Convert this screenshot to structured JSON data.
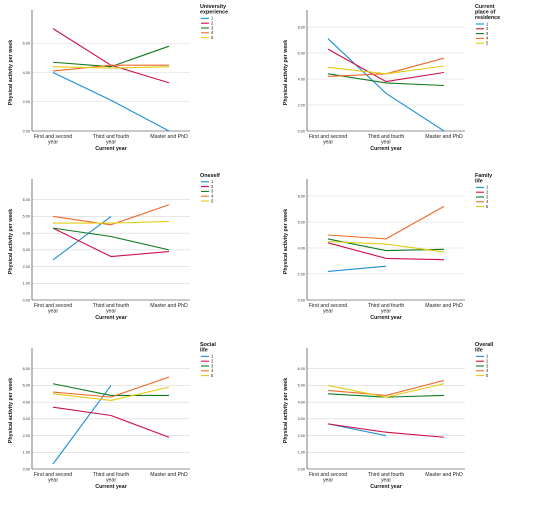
{
  "colors": {
    "1": "#1b8fd6",
    "2": "#d0104a",
    "3": "#127a1f",
    "4": "#ee6a2a",
    "5": "#e4cc12",
    "grid": "#d7d7d7",
    "axis": "#222222"
  },
  "chart_data": [
    {
      "type": "line",
      "ylabel": "Physical activity per week",
      "xlabel": "Current year",
      "legend_title": [
        "University",
        "experience"
      ],
      "ylim": [
        0,
        8
      ],
      "yticks": [
        "0.00",
        "2.00",
        "4.00",
        "6.00"
      ],
      "ytick_values": [
        0,
        2,
        4,
        6
      ],
      "categories": [
        [
          "First and second",
          "year"
        ],
        [
          "Third and fourth",
          "year"
        ],
        [
          "Master and PhD"
        ]
      ],
      "legend_placement": "top-right",
      "series": [
        {
          "name": "1",
          "values": [
            4.0,
            2.1,
            0.0
          ]
        },
        {
          "name": "2",
          "values": [
            7.0,
            4.5,
            3.3
          ]
        },
        {
          "name": "3",
          "values": [
            4.7,
            4.4,
            5.8
          ]
        },
        {
          "name": "4",
          "values": [
            4.1,
            4.5,
            4.5
          ]
        },
        {
          "name": "5",
          "values": [
            4.4,
            4.3,
            4.4
          ]
        }
      ]
    },
    {
      "type": "line",
      "ylabel": "Physical activity per week",
      "xlabel": "Current year",
      "legend_title": [
        "Current",
        "place of",
        "residence"
      ],
      "ylim": [
        0,
        9
      ],
      "yticks": [
        "0.00",
        "2.00",
        "4.00",
        "6.00",
        "8.00"
      ],
      "ytick_values": [
        0,
        2,
        4,
        6,
        8
      ],
      "categories": [
        [
          "First and second",
          "year"
        ],
        [
          "Third and fourth",
          "year"
        ],
        [
          "Master and PhD"
        ]
      ],
      "legend_placement": "top-right",
      "series": [
        {
          "name": "1",
          "values": [
            7.1,
            2.9,
            0.0
          ]
        },
        {
          "name": "2",
          "values": [
            6.3,
            3.8,
            4.5
          ]
        },
        {
          "name": "3",
          "values": [
            4.4,
            3.7,
            3.5
          ]
        },
        {
          "name": "4",
          "values": [
            4.2,
            4.4,
            5.6
          ]
        },
        {
          "name": "5",
          "values": [
            4.9,
            4.4,
            5.0
          ]
        }
      ]
    },
    {
      "type": "line",
      "ylabel": "Physical activity per week",
      "xlabel": "Current year",
      "legend_title": [
        "Oneself"
      ],
      "ylim": [
        0,
        7
      ],
      "yticks": [
        "0.00",
        "1.00",
        "2.00",
        "3.00",
        "4.00",
        "5.00",
        "6.00"
      ],
      "ytick_values": [
        0,
        1,
        2,
        3,
        4,
        5,
        6
      ],
      "categories": [
        [
          "First and second",
          "year"
        ],
        [
          "Third and fourth",
          "year"
        ],
        [
          "Master and PhD"
        ]
      ],
      "legend_placement": "top-right",
      "series": [
        {
          "name": "1",
          "values": [
            2.4,
            5.0,
            null
          ]
        },
        {
          "name": "2",
          "values": [
            4.3,
            2.6,
            2.9
          ]
        },
        {
          "name": "3",
          "values": [
            4.3,
            3.8,
            3.0
          ]
        },
        {
          "name": "4",
          "values": [
            5.0,
            4.5,
            5.7
          ]
        },
        {
          "name": "5",
          "values": [
            4.6,
            4.6,
            4.7
          ]
        }
      ]
    },
    {
      "type": "line",
      "ylabel": "Physical activity per week",
      "xlabel": "Current year",
      "legend_title": [
        "Family",
        "life"
      ],
      "ylim": [
        0,
        9
      ],
      "yticks": [
        "0.00",
        "2.00",
        "4.00",
        "6.00",
        "8.00"
      ],
      "ytick_values": [
        0,
        2,
        4,
        6,
        8
      ],
      "categories": [
        [
          "First and second",
          "year"
        ],
        [
          "Third and fourth",
          "year"
        ],
        [
          "Master and PhD"
        ]
      ],
      "legend_placement": "top-right",
      "series": [
        {
          "name": "1",
          "values": [
            2.2,
            2.6,
            null
          ]
        },
        {
          "name": "2",
          "values": [
            4.4,
            3.2,
            3.1
          ]
        },
        {
          "name": "3",
          "values": [
            4.7,
            3.8,
            3.9
          ]
        },
        {
          "name": "4",
          "values": [
            5.0,
            4.7,
            7.2
          ]
        },
        {
          "name": "5",
          "values": [
            4.5,
            4.3,
            3.7
          ]
        }
      ]
    },
    {
      "type": "line",
      "ylabel": "Physical activity per week",
      "xlabel": "Current year",
      "legend_title": [
        "Social",
        "life"
      ],
      "ylim": [
        0,
        7
      ],
      "yticks": [
        "0.00",
        "1.00",
        "2.00",
        "3.00",
        "4.00",
        "5.00",
        "6.00"
      ],
      "ytick_values": [
        0,
        1,
        2,
        3,
        4,
        5,
        6
      ],
      "categories": [
        [
          "First and second",
          "year"
        ],
        [
          "Third and fourth",
          "year"
        ],
        [
          "Master and PhD"
        ]
      ],
      "legend_placement": "top-right",
      "series": [
        {
          "name": "1",
          "values": [
            0.3,
            5.0,
            null
          ]
        },
        {
          "name": "2",
          "values": [
            3.7,
            3.2,
            1.9
          ]
        },
        {
          "name": "3",
          "values": [
            5.1,
            4.4,
            4.4
          ]
        },
        {
          "name": "4",
          "values": [
            4.6,
            4.3,
            5.5
          ]
        },
        {
          "name": "5",
          "values": [
            4.5,
            4.1,
            4.9
          ]
        }
      ]
    },
    {
      "type": "line",
      "ylabel": "Physical activity per week",
      "xlabel": "Current year",
      "legend_title": [
        "Overall",
        "life"
      ],
      "ylim": [
        0,
        7
      ],
      "yticks": [
        "0.00",
        "1.00",
        "2.00",
        "3.00",
        "4.00",
        "5.00",
        "6.00"
      ],
      "ytick_values": [
        0,
        1,
        2,
        3,
        4,
        5,
        6
      ],
      "categories": [
        [
          "First and second",
          "year"
        ],
        [
          "Third and fourth",
          "year"
        ],
        [
          "Master and PhD"
        ]
      ],
      "legend_placement": "top-right",
      "series": [
        {
          "name": "1",
          "values": [
            2.7,
            2.0,
            null
          ]
        },
        {
          "name": "2",
          "values": [
            2.7,
            2.2,
            1.9
          ]
        },
        {
          "name": "3",
          "values": [
            4.5,
            4.3,
            4.4
          ]
        },
        {
          "name": "4",
          "values": [
            4.7,
            4.4,
            5.3
          ]
        },
        {
          "name": "5",
          "values": [
            5.0,
            4.3,
            5.1
          ]
        }
      ]
    }
  ]
}
